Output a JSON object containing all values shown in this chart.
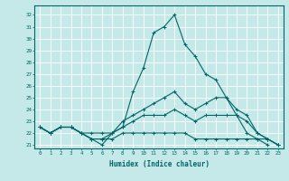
{
  "xlabel": "Humidex (Indice chaleur)",
  "ylabel": "",
  "bg_color": "#c5e8e8",
  "grid_color": "#ffffff",
  "line_color": "#006666",
  "xlim": [
    -0.5,
    23.5
  ],
  "ylim": [
    20.7,
    32.8
  ],
  "yticks": [
    21,
    22,
    23,
    24,
    25,
    26,
    27,
    28,
    29,
    30,
    31,
    32
  ],
  "xticks": [
    0,
    1,
    2,
    3,
    4,
    5,
    6,
    7,
    8,
    9,
    10,
    11,
    12,
    13,
    14,
    15,
    16,
    17,
    18,
    19,
    20,
    21,
    22,
    23
  ],
  "series": [
    [
      22.5,
      22.0,
      22.5,
      22.5,
      22.0,
      21.5,
      21.0,
      22.0,
      22.5,
      25.5,
      27.5,
      30.5,
      31.0,
      32.0,
      29.5,
      28.5,
      27.0,
      26.5,
      25.0,
      23.5,
      22.0,
      21.5,
      21.0
    ],
    [
      22.5,
      22.0,
      22.5,
      22.5,
      22.0,
      21.5,
      21.5,
      22.0,
      23.0,
      23.5,
      24.0,
      24.5,
      25.0,
      25.5,
      24.5,
      24.0,
      24.5,
      25.0,
      25.0,
      24.0,
      23.5,
      22.0,
      21.5,
      21.0
    ],
    [
      22.5,
      22.0,
      22.5,
      22.5,
      22.0,
      22.0,
      22.0,
      22.0,
      22.5,
      23.0,
      23.5,
      23.5,
      23.5,
      24.0,
      23.5,
      23.0,
      23.5,
      23.5,
      23.5,
      23.5,
      23.0,
      22.0,
      21.5,
      21.0
    ],
    [
      22.5,
      22.0,
      22.5,
      22.5,
      22.0,
      21.5,
      21.5,
      21.5,
      22.0,
      22.0,
      22.0,
      22.0,
      22.0,
      22.0,
      22.0,
      21.5,
      21.5,
      21.5,
      21.5,
      21.5,
      21.5,
      21.5,
      21.5,
      21.0
    ]
  ],
  "series0_x": [
    0,
    1,
    2,
    3,
    4,
    5,
    6,
    7,
    8,
    9,
    10,
    11,
    12,
    13,
    14,
    15,
    16,
    17,
    18,
    19,
    20,
    21,
    22
  ]
}
